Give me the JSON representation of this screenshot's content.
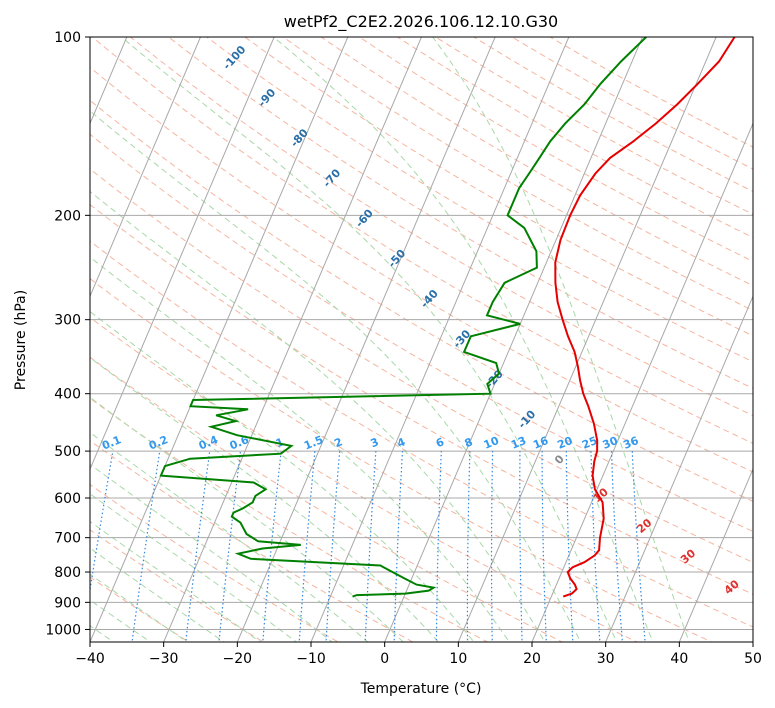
{
  "chart_data": {
    "type": "line",
    "title": "wetPf2_C2E2.2026.106.12.10.G30",
    "xlabel": "Temperature (°C)",
    "ylabel": "Pressure (hPa)",
    "xlim": [
      -40,
      50
    ],
    "ylim": [
      1050,
      100
    ],
    "y_scale": "log",
    "grid": true,
    "x_ticks": [
      -40,
      -30,
      -20,
      -10,
      0,
      10,
      20,
      30,
      40,
      50
    ],
    "y_ticks": [
      100,
      200,
      300,
      400,
      500,
      600,
      700,
      800,
      900,
      1000
    ],
    "colors": {
      "temperature": "#e60000",
      "dewpoint": "#008000",
      "isotherm": "#a8a8a8",
      "dry_adiabat": "#f5b5a0",
      "moist_adiabat": "#a8d8a8",
      "mixing_ratio": "#3388dd",
      "dry_label": "#e03030",
      "moist_label": "#2a6fa8",
      "mixing_label": "#3399ee"
    },
    "temperature_profile": [
      [
        880,
        21.6
      ],
      [
        870,
        22.6
      ],
      [
        855,
        23.0
      ],
      [
        840,
        22.5
      ],
      [
        820,
        21.5
      ],
      [
        800,
        20.8
      ],
      [
        785,
        21.2
      ],
      [
        770,
        22.5
      ],
      [
        750,
        23.5
      ],
      [
        735,
        23.8
      ],
      [
        700,
        23.2
      ],
      [
        650,
        22.6
      ],
      [
        610,
        21.5
      ],
      [
        580,
        19.7
      ],
      [
        550,
        18.6
      ],
      [
        520,
        18.0
      ],
      [
        500,
        17.8
      ],
      [
        480,
        17.2
      ],
      [
        450,
        15.8
      ],
      [
        420,
        14.0
      ],
      [
        400,
        12.6
      ],
      [
        380,
        11.4
      ],
      [
        360,
        10.3
      ],
      [
        340,
        9.0
      ],
      [
        320,
        7.2
      ],
      [
        300,
        5.5
      ],
      [
        280,
        3.8
      ],
      [
        260,
        2.4
      ],
      [
        240,
        1.2
      ],
      [
        220,
        0.6
      ],
      [
        200,
        0.5
      ],
      [
        185,
        0.7
      ],
      [
        170,
        1.5
      ],
      [
        160,
        2.6
      ],
      [
        150,
        4.8
      ],
      [
        140,
        6.8
      ],
      [
        130,
        8.6
      ],
      [
        120,
        10.2
      ],
      [
        110,
        11.8
      ],
      [
        100,
        12.5
      ]
    ],
    "dewpoint_profile": [
      [
        880,
        -7
      ],
      [
        875,
        -6.5
      ],
      [
        870,
        0
      ],
      [
        860,
        3
      ],
      [
        850,
        3.5
      ],
      [
        840,
        1
      ],
      [
        820,
        -1
      ],
      [
        800,
        -3
      ],
      [
        780,
        -5
      ],
      [
        760,
        -23
      ],
      [
        745,
        -25
      ],
      [
        730,
        -22
      ],
      [
        720,
        -17
      ],
      [
        710,
        -23
      ],
      [
        690,
        -25
      ],
      [
        660,
        -26.5
      ],
      [
        645,
        -28
      ],
      [
        635,
        -28
      ],
      [
        625,
        -27
      ],
      [
        610,
        -26
      ],
      [
        595,
        -26
      ],
      [
        580,
        -25
      ],
      [
        565,
        -27
      ],
      [
        550,
        -40
      ],
      [
        530,
        -40
      ],
      [
        515,
        -37
      ],
      [
        505,
        -25
      ],
      [
        490,
        -24
      ],
      [
        470,
        -32
      ],
      [
        455,
        -36
      ],
      [
        445,
        -33
      ],
      [
        435,
        -36
      ],
      [
        425,
        -32
      ],
      [
        420,
        -40
      ],
      [
        410,
        -40
      ],
      [
        400,
        0
      ],
      [
        385,
        -1
      ],
      [
        370,
        0
      ],
      [
        355,
        -1
      ],
      [
        340,
        -6
      ],
      [
        320,
        -6
      ],
      [
        305,
        0
      ],
      [
        295,
        -5
      ],
      [
        280,
        -5
      ],
      [
        260,
        -4.5
      ],
      [
        245,
        -1
      ],
      [
        230,
        -2
      ],
      [
        210,
        -5
      ],
      [
        200,
        -8
      ],
      [
        190,
        -8
      ],
      [
        180,
        -8
      ],
      [
        170,
        -7.5
      ],
      [
        160,
        -7
      ],
      [
        150,
        -6.5
      ],
      [
        140,
        -5.5
      ],
      [
        130,
        -4
      ],
      [
        120,
        -3
      ],
      [
        110,
        -1.5
      ],
      [
        100,
        0.5
      ]
    ],
    "moist_adiabat_labels": [
      -100,
      -90,
      -80,
      -70,
      -60,
      -50,
      -40,
      -30,
      -20,
      -10,
      0
    ],
    "dry_adiabat_labels": [
      10,
      20,
      30,
      40
    ],
    "mixing_ratio_labels": [
      0.1,
      0.2,
      0.4,
      0.6,
      1,
      1.5,
      2,
      3,
      4,
      6,
      8,
      10,
      13,
      16,
      20,
      25,
      30,
      36
    ]
  }
}
